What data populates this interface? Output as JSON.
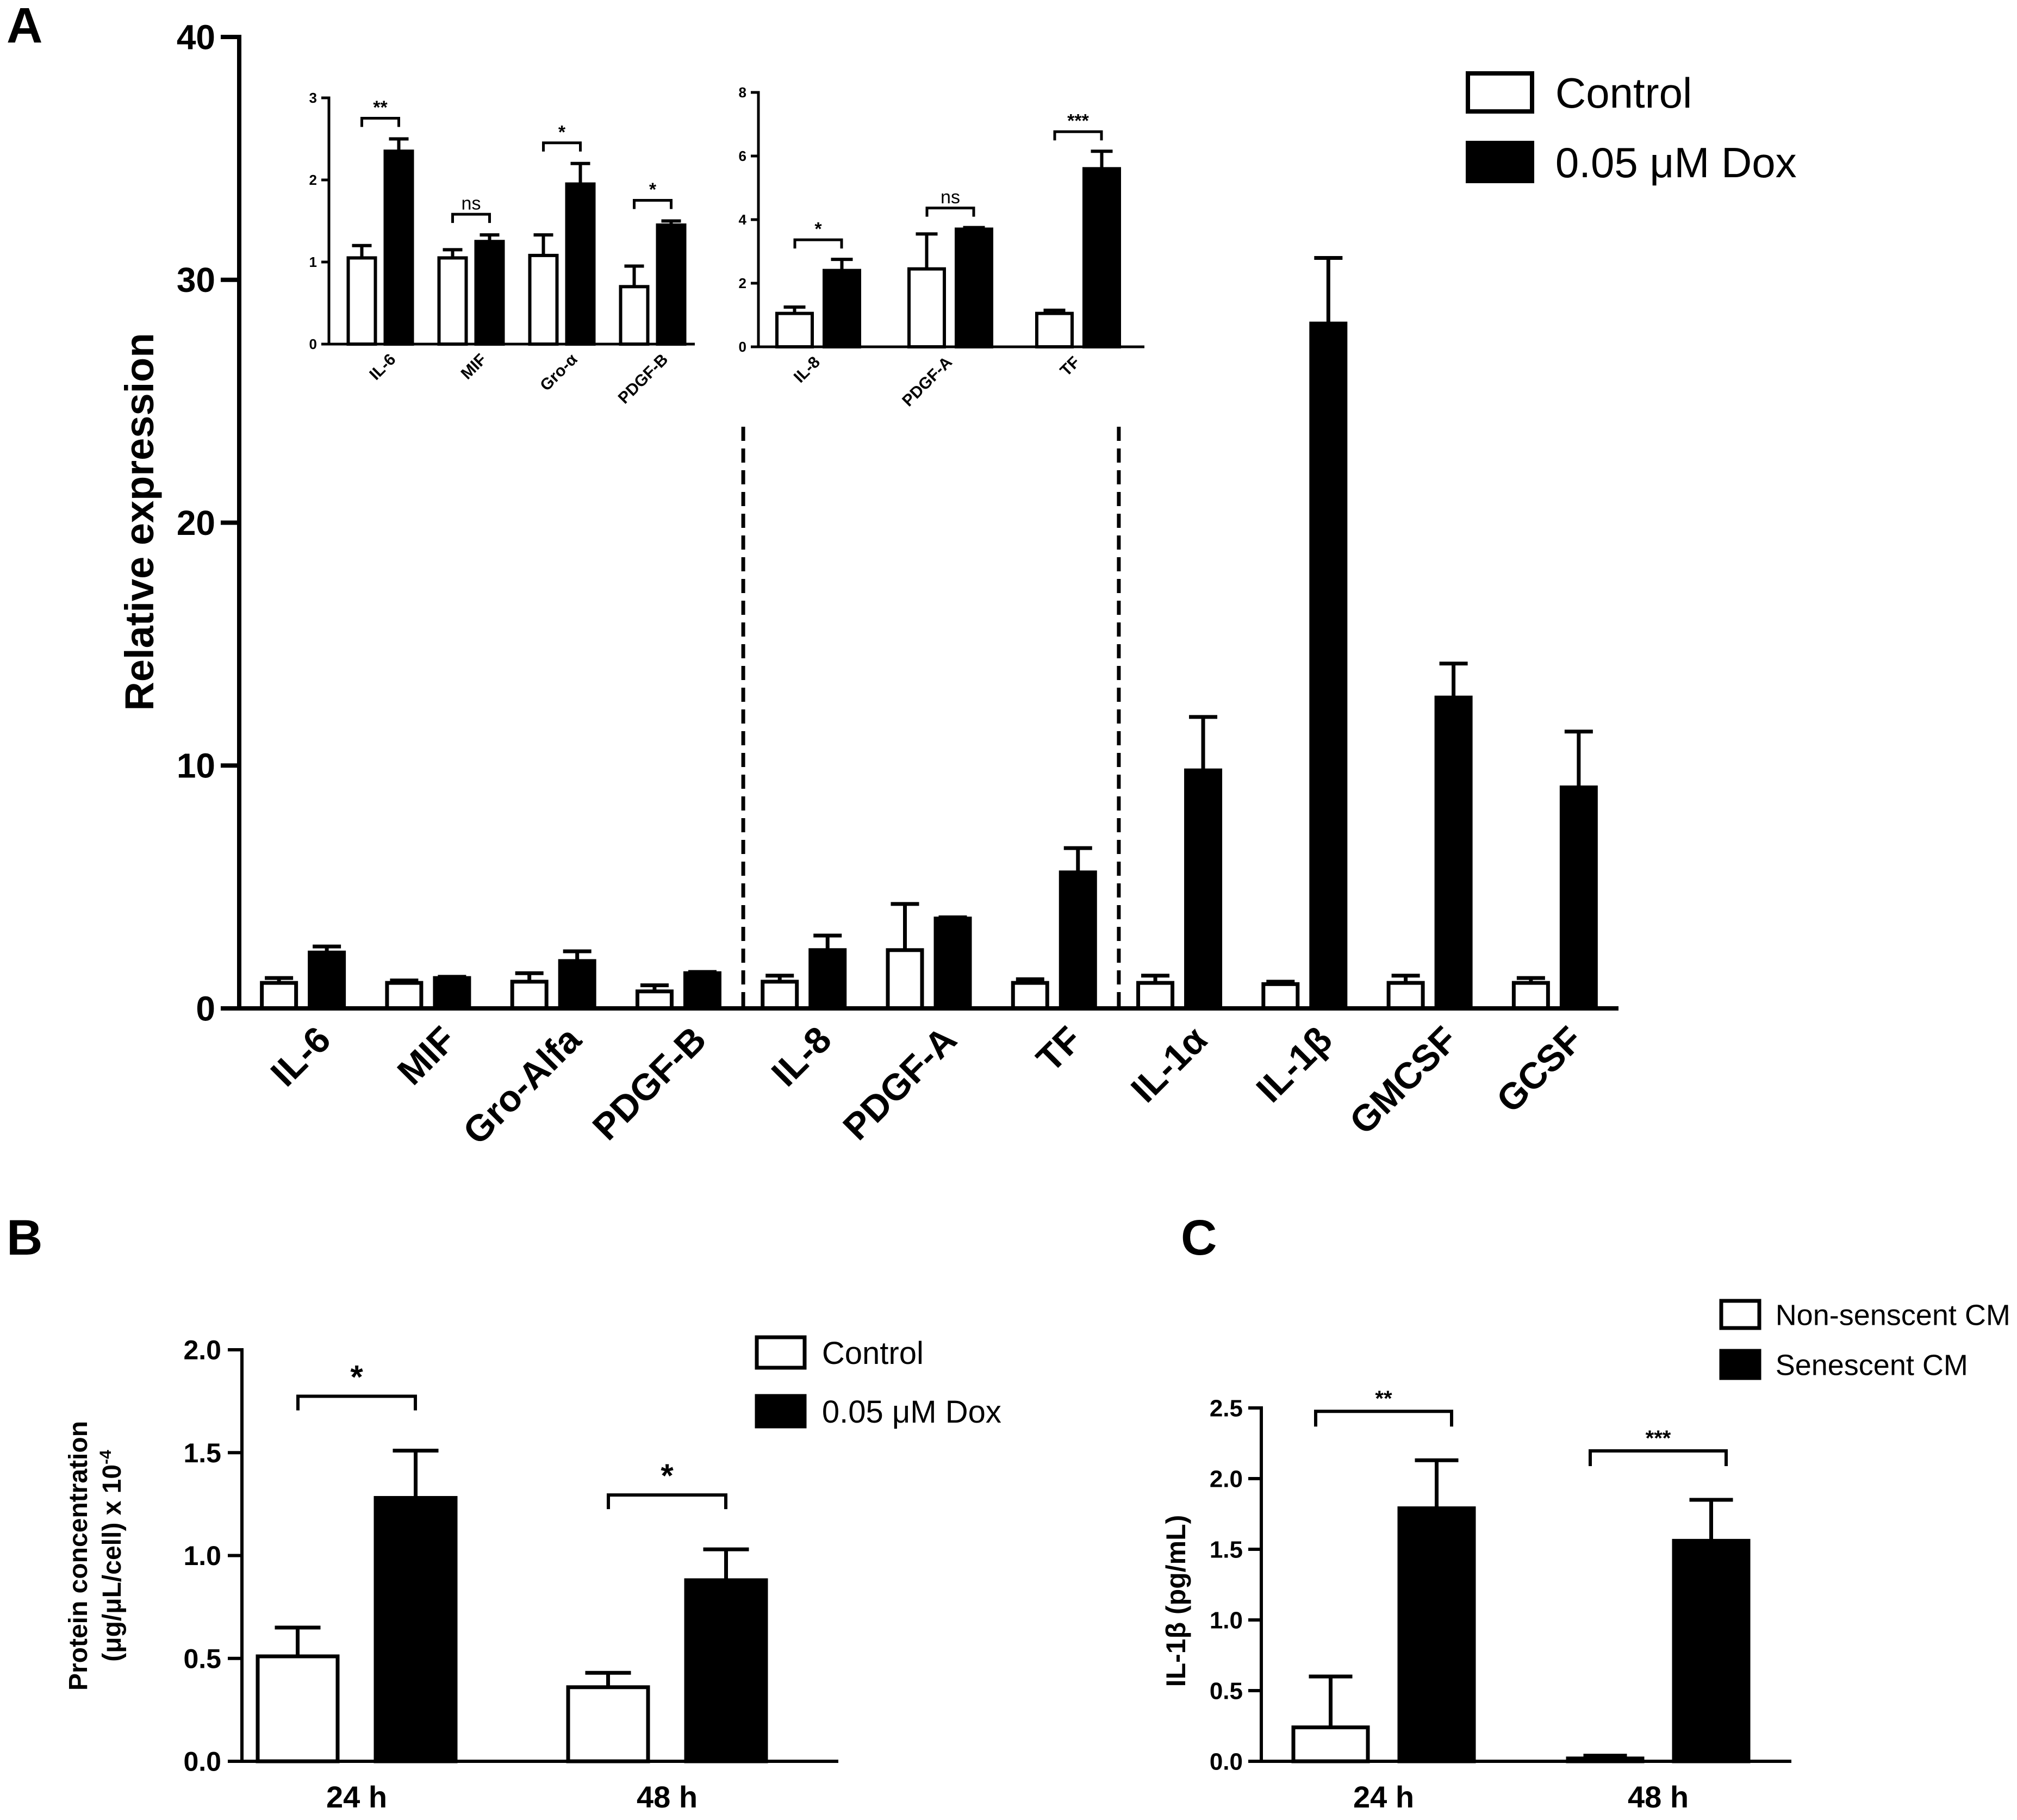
{
  "chart_data": [
    {
      "panel": "A",
      "type": "bar",
      "ylabel": "Relative expression",
      "ylim": [
        0,
        40
      ],
      "yticks": [
        0,
        10,
        20,
        30,
        40
      ],
      "legend": [
        "Control",
        "0.05 μM Dox"
      ],
      "legend_position": "top-right",
      "categories": [
        "IL-6",
        "MIF",
        "Gro-Alfa",
        "PDGF-B",
        "IL-8",
        "PDGF-A",
        "TF",
        "IL-1α",
        "IL-1β",
        "GMCSF",
        "GCSF"
      ],
      "series": [
        {
          "name": "Control",
          "values": [
            1.05,
            1.05,
            1.1,
            0.7,
            1.1,
            2.4,
            1.05,
            1.05,
            1.0,
            1.05,
            1.05
          ],
          "errors": [
            0.2,
            0.1,
            0.35,
            0.25,
            0.25,
            1.9,
            0.15,
            0.3,
            0.1,
            0.3,
            0.2
          ]
        },
        {
          "name": "0.05 μM Dox",
          "values": [
            2.3,
            1.25,
            1.95,
            1.45,
            2.4,
            3.7,
            5.6,
            9.8,
            28.2,
            12.8,
            9.1
          ],
          "errors": [
            0.25,
            0.05,
            0.4,
            0.05,
            0.6,
            0.05,
            1.0,
            2.2,
            2.7,
            1.4,
            2.3
          ]
        }
      ],
      "separators_after": [
        "PDGF-B",
        "TF"
      ],
      "insets": [
        {
          "type": "bar",
          "ylim": [
            0,
            3
          ],
          "yticks": [
            0,
            1,
            2,
            3
          ],
          "categories": [
            "IL-6",
            "MIF",
            "Gro-α",
            "PDGF-B"
          ],
          "series": [
            {
              "name": "Control",
              "values": [
                1.05,
                1.05,
                1.08,
                0.7
              ],
              "errors": [
                0.15,
                0.1,
                0.25,
                0.25
              ]
            },
            {
              "name": "0.05 μM Dox",
              "values": [
                2.35,
                1.25,
                1.95,
                1.45
              ],
              "errors": [
                0.15,
                0.08,
                0.25,
                0.05
              ]
            }
          ],
          "significance": [
            "**",
            "ns",
            "*",
            "*"
          ]
        },
        {
          "type": "bar",
          "ylim": [
            0,
            8
          ],
          "yticks": [
            0,
            2,
            4,
            6,
            8
          ],
          "categories": [
            "IL-8",
            "PDGF-A",
            "TF"
          ],
          "series": [
            {
              "name": "Control",
              "values": [
                1.05,
                2.45,
                1.05
              ],
              "errors": [
                0.2,
                1.1,
                0.1
              ]
            },
            {
              "name": "0.05 μM Dox",
              "values": [
                2.4,
                3.7,
                5.6
              ],
              "errors": [
                0.35,
                0.05,
                0.55
              ]
            }
          ],
          "significance": [
            "*",
            "ns",
            "***"
          ]
        }
      ]
    },
    {
      "panel": "B",
      "type": "bar",
      "ylabel_line1": "Protein concentration",
      "ylabel_line2": "(μg/μL/cell) x 10",
      "ylabel_exponent": "-4",
      "ylim": [
        0,
        2.0
      ],
      "yticks": [
        "0.0",
        "0.5",
        "1.0",
        "1.5",
        "2.0"
      ],
      "legend": [
        "Control",
        "0.05 μM Dox"
      ],
      "legend_position": "top-right",
      "categories": [
        "24 h",
        "48 h"
      ],
      "series": [
        {
          "name": "Control",
          "values": [
            0.51,
            0.36
          ],
          "errors": [
            0.14,
            0.07
          ]
        },
        {
          "name": "0.05 μM Dox",
          "values": [
            1.28,
            0.88
          ],
          "errors": [
            0.23,
            0.15
          ]
        }
      ],
      "significance": [
        "*",
        "*"
      ]
    },
    {
      "panel": "C",
      "type": "bar",
      "ylabel": "IL-1β (pg/mL)",
      "ylim": [
        0,
        2.5
      ],
      "yticks": [
        "0.0",
        "0.5",
        "1.0",
        "1.5",
        "2.0",
        "2.5"
      ],
      "legend": [
        "Non-senscent CM",
        "Senescent CM"
      ],
      "legend_position": "top-right",
      "categories": [
        "24 h",
        "48 h"
      ],
      "series": [
        {
          "name": "Non-senscent CM",
          "values": [
            0.24,
            0.02
          ],
          "errors": [
            0.36,
            0.02
          ]
        },
        {
          "name": "Senescent CM",
          "values": [
            1.79,
            1.56
          ],
          "errors": [
            0.34,
            0.29
          ]
        }
      ],
      "significance": [
        "**",
        "***"
      ]
    }
  ],
  "colors": {
    "control_fill": "#ffffff",
    "treated_fill": "#000000",
    "stroke": "#000000"
  }
}
